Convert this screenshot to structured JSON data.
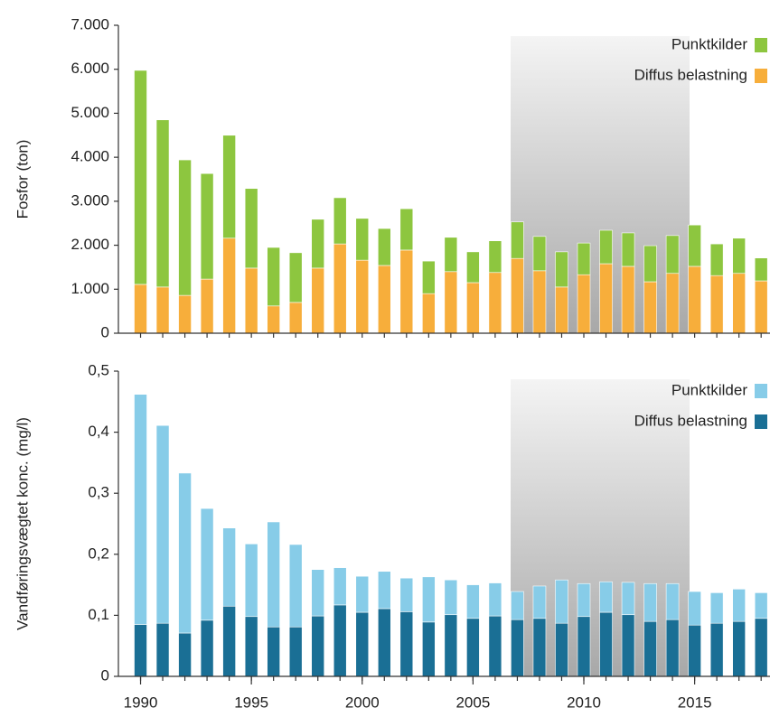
{
  "chart_data": [
    {
      "type": "stacked-bar",
      "ylabel": "Fosfor (ton)",
      "x": [
        1990,
        1991,
        1992,
        1993,
        1994,
        1995,
        1996,
        1997,
        1998,
        1999,
        2000,
        2001,
        2002,
        2003,
        2004,
        2005,
        2006,
        2007,
        2008,
        2009,
        2010,
        2011,
        2012,
        2013,
        2014,
        2015,
        2016,
        2017,
        2018
      ],
      "series": [
        {
          "name": "Diffus belastning",
          "color": "#f7ae3b",
          "values": [
            1110,
            1050,
            860,
            1230,
            2160,
            1480,
            620,
            700,
            1480,
            2030,
            1660,
            1540,
            1890,
            900,
            1400,
            1150,
            1380,
            1700,
            1420,
            1050,
            1330,
            1580,
            1520,
            1170,
            1360,
            1520,
            1310,
            1360,
            1190
          ]
        },
        {
          "name": "Punktkilder",
          "color": "#8dc63f",
          "values": [
            4865,
            3800,
            3080,
            2400,
            2340,
            1810,
            1330,
            1130,
            1110,
            1050,
            950,
            840,
            940,
            740,
            780,
            700,
            720,
            830,
            780,
            800,
            720,
            760,
            760,
            820,
            860,
            940,
            720,
            800,
            520
          ]
        }
      ],
      "xlim": [
        1989,
        2018.4
      ],
      "ylim": [
        0,
        7000
      ],
      "yticks": [
        0,
        {
          "value": 1000,
          "label": "1.000"
        },
        {
          "value": 2000,
          "label": "2.000"
        },
        {
          "value": 3000,
          "label": "3.000"
        },
        {
          "value": 4000,
          "label": "4.000"
        },
        {
          "value": 5000,
          "label": "5.000"
        },
        {
          "value": 6000,
          "label": "6.000"
        },
        {
          "value": 7000,
          "label": "7.000"
        }
      ],
      "legend": "top-right"
    },
    {
      "type": "stacked-bar",
      "ylabel": "Vandføringsvægtet konc. (mg/l)",
      "x": [
        1990,
        1991,
        1992,
        1993,
        1994,
        1995,
        1996,
        1997,
        1998,
        1999,
        2000,
        2001,
        2002,
        2003,
        2004,
        2005,
        2006,
        2007,
        2008,
        2009,
        2010,
        2011,
        2012,
        2013,
        2014,
        2015,
        2016,
        2017,
        2018
      ],
      "series": [
        {
          "name": "Diffus belastning",
          "color": "#1a6f95",
          "values": [
            0.085,
            0.087,
            0.071,
            0.092,
            0.115,
            0.098,
            0.081,
            0.081,
            0.099,
            0.117,
            0.105,
            0.111,
            0.106,
            0.089,
            0.101,
            0.095,
            0.099,
            0.093,
            0.095,
            0.087,
            0.098,
            0.105,
            0.101,
            0.09,
            0.093,
            0.084,
            0.087,
            0.09,
            0.095
          ]
        },
        {
          "name": "Punktkilder",
          "color": "#87cce8",
          "values": [
            0.377,
            0.324,
            0.262,
            0.183,
            0.128,
            0.119,
            0.172,
            0.135,
            0.076,
            0.061,
            0.059,
            0.061,
            0.055,
            0.074,
            0.057,
            0.055,
            0.054,
            0.046,
            0.053,
            0.071,
            0.054,
            0.05,
            0.053,
            0.062,
            0.059,
            0.055,
            0.05,
            0.053,
            0.042
          ]
        }
      ],
      "xlim": [
        1989,
        2018.4
      ],
      "ylim": [
        0,
        0.5
      ],
      "yticks": [
        0,
        {
          "value": 0.1,
          "label": "0,1"
        },
        {
          "value": 0.2,
          "label": "0,2"
        },
        {
          "value": 0.3,
          "label": "0,3"
        },
        {
          "value": 0.4,
          "label": "0,4"
        },
        {
          "value": 0.5,
          "label": "0,5"
        }
      ],
      "xticks": [
        1990,
        1995,
        2000,
        2005,
        2010,
        2015
      ],
      "legend": "top-right"
    }
  ]
}
